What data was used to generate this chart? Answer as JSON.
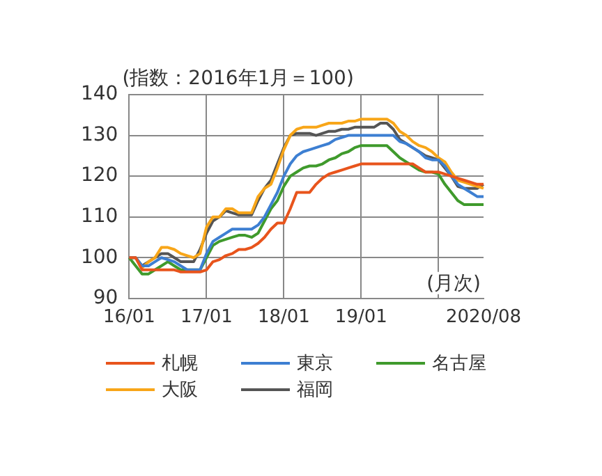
{
  "chart_data": {
    "type": "line",
    "categories": [
      "16/01",
      null,
      null,
      null,
      null,
      null,
      null,
      null,
      null,
      null,
      null,
      null,
      "17/01",
      null,
      null,
      null,
      null,
      null,
      null,
      null,
      null,
      null,
      null,
      null,
      "18/01",
      null,
      null,
      null,
      null,
      null,
      null,
      null,
      null,
      null,
      null,
      null,
      "19/01",
      null,
      null,
      null,
      null,
      null,
      null,
      null,
      null,
      null,
      null,
      null,
      null,
      null,
      null,
      null,
      null,
      null,
      null,
      "2020/08"
    ],
    "series": [
      {
        "name": "札幌",
        "color": "#e8541c",
        "values": [
          100,
          100,
          97,
          97,
          97,
          97,
          97,
          97,
          96.5,
          96.5,
          96.5,
          96.5,
          97,
          99,
          99.5,
          100.5,
          101,
          102,
          102,
          102.5,
          103.5,
          105,
          107,
          108.5,
          108.5,
          112,
          116,
          116,
          116,
          118,
          119.5,
          120.5,
          121,
          121.5,
          122,
          122.5,
          123,
          123,
          123,
          123,
          123,
          123,
          123,
          123,
          123,
          122,
          121,
          121,
          121,
          120.5,
          120,
          119.5,
          119,
          118.5,
          118,
          118
        ]
      },
      {
        "name": "東京",
        "color": "#3d7fd2",
        "values": [
          100,
          100,
          98,
          98,
          99,
          100,
          99.5,
          99,
          98,
          97,
          97,
          97,
          101,
          104,
          105,
          106,
          107,
          107,
          107,
          107,
          108,
          110,
          113,
          116,
          120,
          123,
          125,
          126,
          126.5,
          127,
          127.5,
          128,
          129,
          129.5,
          130,
          130,
          130,
          130,
          130,
          130,
          130,
          130,
          128.5,
          128,
          127,
          126,
          124.5,
          124,
          124,
          122.5,
          120,
          118,
          117,
          116,
          115,
          115
        ]
      },
      {
        "name": "名古屋",
        "color": "#3f9a2c",
        "values": [
          100,
          98,
          96,
          96,
          97,
          98,
          99,
          98,
          97,
          97,
          97,
          97,
          100,
          103,
          104,
          104.5,
          105,
          105.5,
          105.5,
          105,
          106,
          109,
          112,
          114,
          117.5,
          120,
          121,
          122,
          122.5,
          122.5,
          123,
          124,
          124.5,
          125.5,
          126,
          127,
          127.5,
          127.5,
          127.5,
          127.5,
          127.5,
          126,
          124.5,
          123.5,
          122.5,
          121.5,
          121,
          121,
          120.5,
          118,
          116,
          114,
          113,
          113,
          113,
          113
        ]
      },
      {
        "name": "大阪",
        "color": "#f8a619",
        "values": [
          100,
          100,
          97.5,
          99,
          100,
          102.5,
          102.5,
          102,
          101,
          100.5,
          100,
          101,
          107.5,
          110,
          110,
          112,
          112,
          111,
          111,
          111,
          115,
          117,
          118,
          122,
          126.5,
          130,
          131.5,
          132,
          132,
          132,
          132.5,
          133,
          133,
          133,
          133.5,
          133.5,
          134,
          134,
          134,
          134,
          134,
          133,
          131,
          130,
          128.5,
          127.5,
          127,
          126,
          124.5,
          123.5,
          121,
          119,
          118.5,
          118,
          117.5,
          117
        ]
      },
      {
        "name": "福岡",
        "color": "#555555",
        "values": [
          100,
          100,
          98,
          99,
          100,
          101,
          101,
          100,
          99,
          99,
          99,
          102,
          106,
          109,
          110,
          111.5,
          111,
          110.5,
          110.5,
          110.5,
          114,
          117,
          119,
          123,
          127,
          130,
          130.5,
          130.5,
          130.5,
          130,
          130.5,
          131,
          131,
          131.5,
          131.5,
          132,
          132,
          132,
          132,
          133,
          133,
          131.5,
          129,
          128,
          127,
          126,
          125,
          124.5,
          124,
          122,
          120,
          117.5,
          117,
          117,
          117,
          118
        ]
      }
    ],
    "ylim": [
      90,
      140
    ],
    "yticks": [
      90,
      100,
      110,
      120,
      130,
      140
    ],
    "grid": true,
    "legend": "bottom",
    "marker": "none",
    "line_style": "solid",
    "annotations": [
      "(指数：2016年1月＝100)",
      "(月次)"
    ]
  }
}
